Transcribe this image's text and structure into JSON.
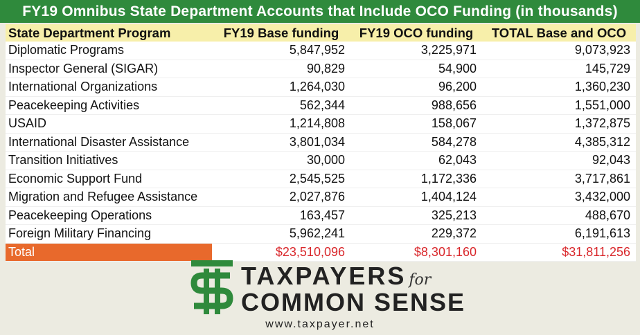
{
  "title": "FY19 Omnibus State Department Accounts that Include OCO Funding (in thousands)",
  "colors": {
    "title_bg": "#2f8a3c",
    "header_bg": "#f7efaa",
    "total_label_bg": "#e8692c",
    "total_value_color": "#d9262a",
    "logo_green": "#2f8a3c"
  },
  "chart_data": {
    "type": "table",
    "title": "FY19 Omnibus State Department Accounts that Include OCO Funding (in thousands)",
    "columns": [
      "State Department Program",
      "FY19 Base funding",
      "FY19 OCO funding",
      "TOTAL Base and OCO"
    ],
    "rows": [
      [
        "Diplomatic Programs",
        "5,847,952",
        "3,225,971",
        "9,073,923"
      ],
      [
        "Inspector General (SIGAR)",
        "90,829",
        "54,900",
        "145,729"
      ],
      [
        "International Organizations",
        "1,264,030",
        "96,200",
        "1,360,230"
      ],
      [
        "Peacekeeping Activities",
        "562,344",
        "988,656",
        "1,551,000"
      ],
      [
        "USAID",
        "1,214,808",
        "158,067",
        "1,372,875"
      ],
      [
        "International Disaster Assistance",
        "3,801,034",
        "584,278",
        "4,385,312"
      ],
      [
        "Transition Initiatives",
        "30,000",
        "62,043",
        "92,043"
      ],
      [
        "Economic Support Fund",
        "2,545,525",
        "1,172,336",
        "3,717,861"
      ],
      [
        "Migration and Refugee Assistance",
        "2,027,876",
        "1,404,124",
        "3,432,000"
      ],
      [
        "Peacekeeping Operations",
        "163,457",
        "325,213",
        "488,670"
      ],
      [
        "Foreign Military Financing",
        "5,962,241",
        "229,372",
        "6,191,613"
      ]
    ],
    "total": [
      "Total",
      "$23,510,096",
      "$8,301,160",
      "$31,811,256"
    ]
  },
  "logo": {
    "line1": "TAXPAYERS",
    "for": "for",
    "line2": "COMMON SENSE",
    "icon": "taxpayers-logo-mark"
  },
  "url": "www.taxpayer.net"
}
